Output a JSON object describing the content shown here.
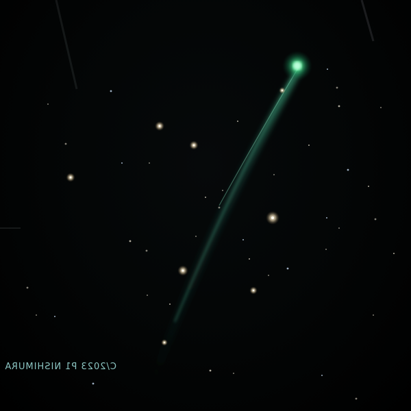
{
  "scene": {
    "subject": "comet",
    "caption_text": "C/2023 P1 NISHIMURA",
    "caption_mirrored": true
  },
  "colors": {
    "sky": "#000000",
    "coma": "#2cff8c",
    "tail": "#3a8f7a",
    "caption": "#9ad9d6",
    "star": "#f3e9d2"
  }
}
